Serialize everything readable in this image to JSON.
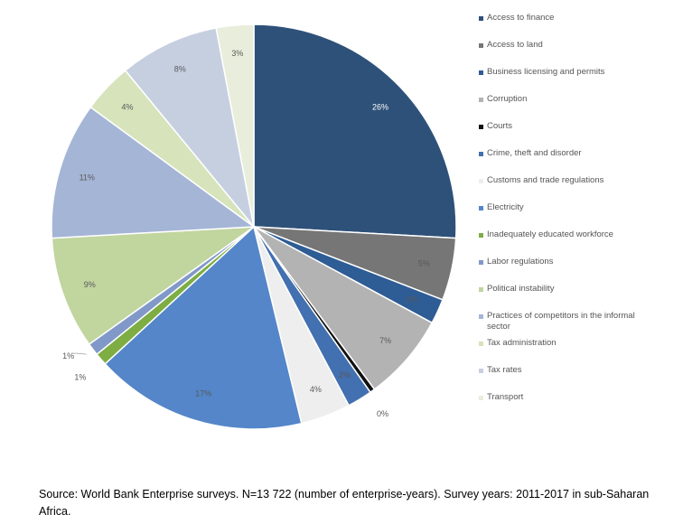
{
  "chart_data": {
    "type": "pie",
    "categories": [
      "Access to finance",
      "Access to land",
      "Business licensing and permits",
      "Corruption",
      "Courts",
      "Crime, theft and disorder",
      "Customs and trade regulations",
      "Electricity",
      "Inadequately educated workforce",
      "Labor regulations",
      "Political instability",
      "Practices of competitors in the informal sector",
      "Tax administration",
      "Tax rates",
      "Transport"
    ],
    "values": [
      26,
      5,
      2,
      7,
      0.4,
      2,
      4,
      17,
      1,
      1,
      9,
      11,
      4,
      8,
      3
    ],
    "labels": [
      "26%",
      "5%",
      "2%",
      "7%",
      "0%",
      "2%",
      "4%",
      "17%",
      "1%",
      "1%",
      "9%",
      "11%",
      "4%",
      "8%",
      "3%"
    ],
    "colors": [
      "#2e5179",
      "#767676",
      "#2e5c94",
      "#b3b3b3",
      "#111111",
      "#4270b0",
      "#eeeeee",
      "#5486c9",
      "#7dad43",
      "#8199c9",
      "#c1d59f",
      "#a5b5d6",
      "#d6e3bb",
      "#c6cfe0",
      "#e8eedb"
    ],
    "legend_position": "right"
  },
  "source_note": "Source: World Bank Enterprise surveys. N=13 722 (number of enterprise-years). Survey years: 2011-2017 in sub-Saharan Africa."
}
